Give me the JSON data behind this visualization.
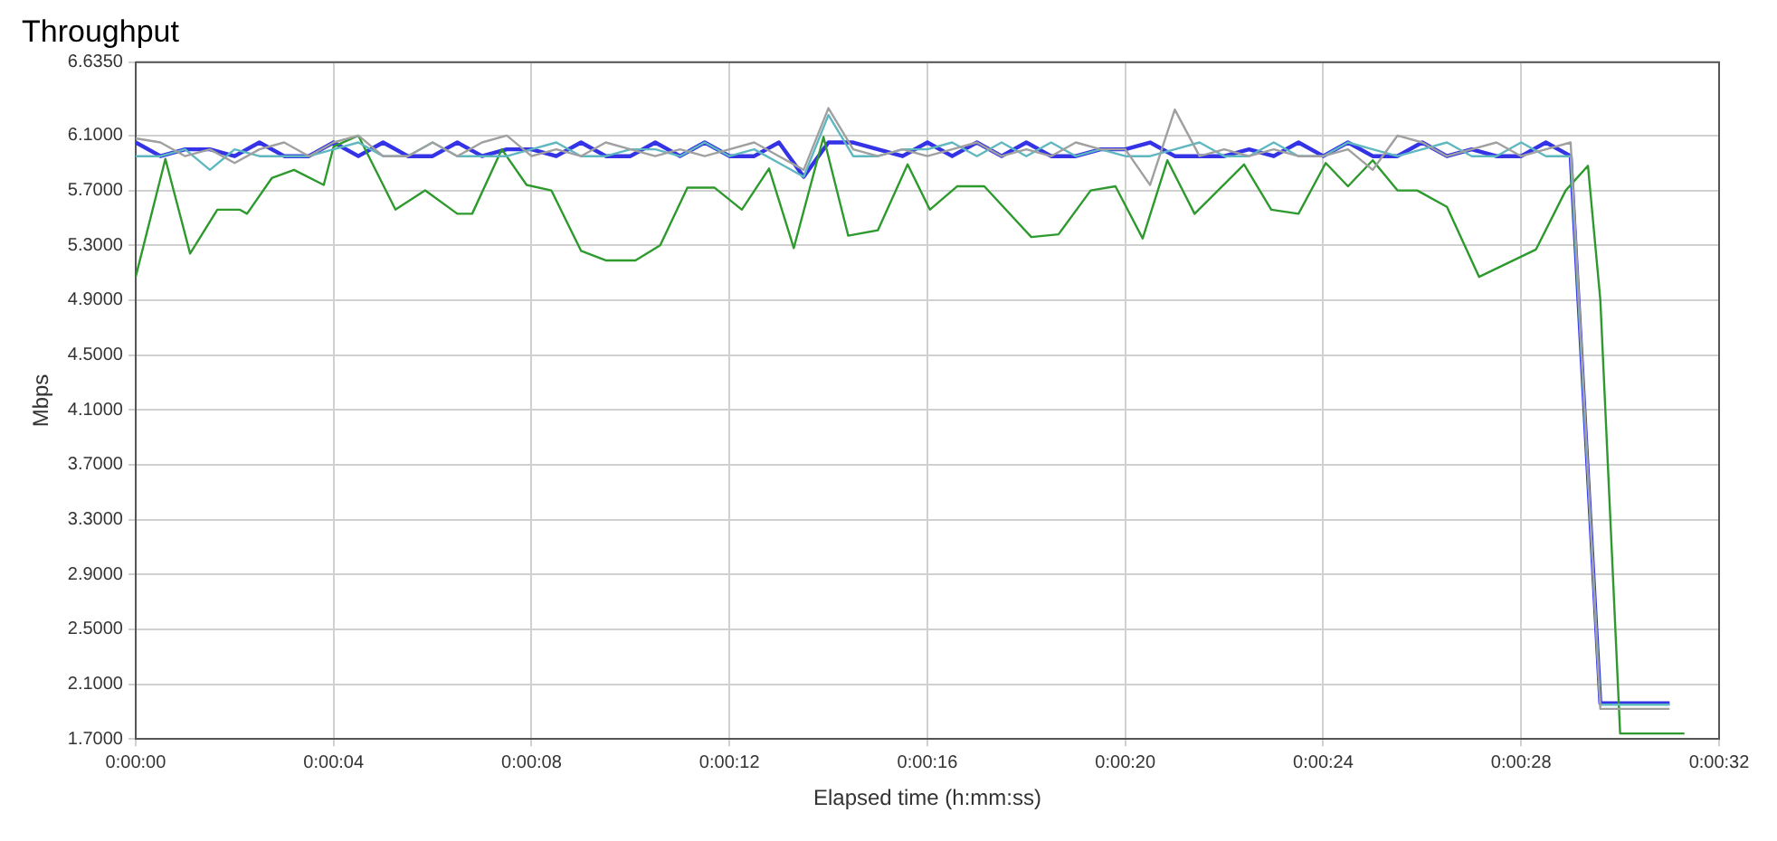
{
  "chart_data": {
    "type": "line",
    "title": "Throughput",
    "xlabel": "Elapsed time (h:mm:ss)",
    "ylabel": "Mbps",
    "xlim": [
      0,
      32
    ],
    "xticks": [
      {
        "value": 0,
        "label": "0:00:00"
      },
      {
        "value": 4,
        "label": "0:00:04"
      },
      {
        "value": 8,
        "label": "0:00:08"
      },
      {
        "value": 12,
        "label": "0:00:12"
      },
      {
        "value": 16,
        "label": "0:00:16"
      },
      {
        "value": 20,
        "label": "0:00:20"
      },
      {
        "value": 24,
        "label": "0:00:24"
      },
      {
        "value": 28,
        "label": "0:00:28"
      },
      {
        "value": 32,
        "label": "0:00:32"
      }
    ],
    "ylim": [
      1.7,
      6.635
    ],
    "yticks": [
      {
        "value": 1.7,
        "label": "1.7000"
      },
      {
        "value": 2.1,
        "label": "2.1000"
      },
      {
        "value": 2.5,
        "label": "2.5000"
      },
      {
        "value": 2.9,
        "label": "2.9000"
      },
      {
        "value": 3.3,
        "label": "3.3000"
      },
      {
        "value": 3.7,
        "label": "3.7000"
      },
      {
        "value": 4.1,
        "label": "4.1000"
      },
      {
        "value": 4.5,
        "label": "4.5000"
      },
      {
        "value": 4.9,
        "label": "4.9000"
      },
      {
        "value": 5.3,
        "label": "5.3000"
      },
      {
        "value": 5.7,
        "label": "5.7000"
      },
      {
        "value": 6.1,
        "label": "6.1000"
      },
      {
        "value": 6.635,
        "label": "6.6350"
      }
    ],
    "grid": true,
    "legend": false,
    "marker": "none",
    "line_style": "solid",
    "series": [
      {
        "color": "#a0a0a0",
        "x": [
          0,
          0.5,
          1,
          1.5,
          2,
          2.5,
          3,
          3.5,
          4,
          4.5,
          5,
          5.5,
          6,
          6.5,
          7,
          7.5,
          8,
          8.5,
          9,
          9.5,
          10,
          10.5,
          11,
          11.5,
          12,
          12.5,
          13,
          13.5,
          14,
          14.5,
          15,
          15.5,
          16,
          16.5,
          17,
          17.5,
          18,
          18.5,
          19,
          19.5,
          20,
          20.5,
          21,
          21.5,
          22,
          22.5,
          23,
          23.5,
          24,
          24.5,
          25,
          25.5,
          26,
          26.5,
          27,
          27.5,
          28,
          28.5,
          29,
          29.6,
          31
        ],
        "values": [
          6.08,
          6.05,
          5.95,
          6.0,
          5.9,
          6.0,
          6.05,
          5.95,
          6.05,
          6.1,
          5.95,
          5.95,
          6.05,
          5.95,
          6.05,
          6.1,
          5.95,
          6.0,
          5.95,
          6.05,
          6.0,
          5.95,
          6.0,
          5.95,
          6.0,
          6.05,
          5.95,
          5.85,
          6.3,
          6.0,
          5.95,
          6.0,
          5.95,
          6.0,
          6.05,
          5.95,
          6.0,
          5.95,
          6.05,
          6.0,
          6.0,
          5.74,
          6.29,
          5.95,
          6.0,
          5.95,
          6.0,
          5.95,
          5.95,
          6.0,
          5.85,
          6.1,
          6.05,
          5.95,
          6.0,
          6.05,
          5.95,
          6.0,
          6.05,
          1.92,
          1.92
        ]
      },
      {
        "color": "#5fb8c0",
        "x": [
          0,
          0.5,
          1,
          1.5,
          2,
          2.5,
          3,
          3.5,
          4,
          4.5,
          5,
          5.5,
          6,
          6.5,
          7,
          7.5,
          8,
          8.5,
          9,
          9.5,
          10,
          10.5,
          11,
          11.5,
          12,
          12.5,
          13,
          13.5,
          14,
          14.5,
          15,
          15.5,
          16,
          16.5,
          17,
          17.5,
          18,
          18.5,
          19,
          19.5,
          20,
          20.5,
          21,
          21.5,
          22,
          22.5,
          23,
          23.5,
          24,
          24.5,
          25,
          25.5,
          26,
          26.5,
          27,
          27.5,
          28,
          28.5,
          29,
          29.6,
          31
        ],
        "values": [
          5.95,
          5.95,
          6.0,
          5.85,
          6.0,
          5.95,
          5.95,
          5.95,
          6.0,
          6.05,
          5.95,
          5.95,
          6.05,
          5.95,
          5.95,
          5.95,
          6.0,
          6.05,
          5.95,
          5.95,
          6.0,
          6.0,
          5.95,
          6.05,
          5.95,
          6.0,
          5.9,
          5.8,
          6.25,
          5.95,
          5.95,
          6.0,
          6.0,
          6.05,
          5.95,
          6.05,
          5.95,
          6.05,
          5.95,
          6.0,
          5.95,
          5.95,
          6.0,
          6.05,
          5.95,
          5.95,
          6.05,
          5.95,
          5.95,
          6.05,
          6.0,
          5.95,
          6.0,
          6.05,
          5.95,
          5.95,
          6.05,
          5.95,
          5.95,
          1.95,
          1.95
        ]
      },
      {
        "color": "#2e9a2e",
        "x": [
          0,
          0.6,
          1.1,
          1.65,
          2.1,
          2.25,
          2.75,
          3.2,
          3.8,
          4.0,
          4.5,
          5.25,
          5.85,
          6.5,
          6.8,
          7.4,
          7.9,
          8.4,
          9.0,
          9.5,
          10.1,
          10.6,
          11.15,
          11.7,
          12.25,
          12.8,
          13.3,
          13.9,
          14.4,
          15.0,
          15.6,
          16.05,
          16.6,
          17.15,
          18.1,
          18.65,
          19.3,
          19.8,
          20.35,
          20.85,
          21.4,
          22.4,
          22.95,
          23.5,
          24.05,
          24.5,
          25.0,
          25.5,
          25.9,
          26.5,
          27.15,
          28.3,
          28.9,
          29.35,
          29.6,
          30.0,
          31.3
        ],
        "values": [
          5.07,
          5.93,
          5.24,
          5.56,
          5.56,
          5.53,
          5.79,
          5.85,
          5.74,
          6.02,
          6.1,
          5.56,
          5.7,
          5.53,
          5.53,
          6.0,
          5.74,
          5.7,
          5.26,
          5.19,
          5.19,
          5.3,
          5.72,
          5.72,
          5.56,
          5.86,
          5.28,
          6.09,
          5.37,
          5.41,
          5.89,
          5.56,
          5.73,
          5.73,
          5.36,
          5.38,
          5.7,
          5.73,
          5.35,
          5.92,
          5.53,
          5.89,
          5.56,
          5.53,
          5.9,
          5.73,
          5.92,
          5.7,
          5.7,
          5.58,
          5.07,
          5.27,
          5.7,
          5.88,
          4.9,
          1.74,
          1.74
        ]
      },
      {
        "color": "#3434e6",
        "x": [
          0,
          0.5,
          1,
          1.5,
          2,
          2.5,
          3,
          3.5,
          4,
          4.5,
          5,
          5.5,
          6,
          6.5,
          7,
          7.5,
          8,
          8.5,
          9,
          9.5,
          10,
          10.5,
          11,
          11.5,
          12,
          12.5,
          13,
          13.5,
          14,
          14.5,
          15,
          15.5,
          16,
          16.5,
          17,
          17.5,
          18,
          18.5,
          19,
          19.5,
          20,
          20.5,
          21,
          21.5,
          22,
          22.5,
          23,
          23.5,
          24,
          24.5,
          25,
          25.5,
          26,
          26.5,
          27,
          27.5,
          28,
          28.5,
          29,
          29.6,
          31
        ],
        "values": [
          6.05,
          5.95,
          6.0,
          6.0,
          5.95,
          6.05,
          5.95,
          5.95,
          6.05,
          5.95,
          6.05,
          5.95,
          5.95,
          6.05,
          5.95,
          6.0,
          6.0,
          5.95,
          6.05,
          5.95,
          5.95,
          6.05,
          5.95,
          6.05,
          5.95,
          5.95,
          6.05,
          5.8,
          6.05,
          6.05,
          6.0,
          5.95,
          6.05,
          5.95,
          6.05,
          5.95,
          6.05,
          5.95,
          5.95,
          6.0,
          6.0,
          6.05,
          5.95,
          5.95,
          5.95,
          6.0,
          5.95,
          6.05,
          5.95,
          6.05,
          5.95,
          5.95,
          6.05,
          5.95,
          6.0,
          5.95,
          5.95,
          6.05,
          5.95,
          1.96,
          1.96
        ]
      }
    ]
  }
}
